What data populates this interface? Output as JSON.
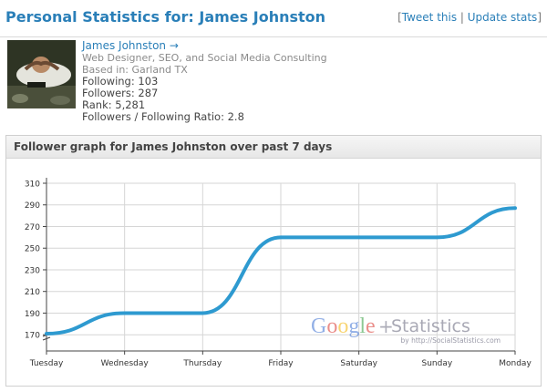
{
  "header": {
    "title": "Personal Statistics for: James Johnston",
    "open_bracket": "[",
    "tweet_link": "Tweet this",
    "separator": " | ",
    "update_link": "Update stats",
    "close_bracket": "]"
  },
  "profile": {
    "name": "James Johnston →",
    "bio": "Web Designer, SEO, and Social Media Consulting",
    "location": "Based in: Garland TX",
    "following": "Following: 103",
    "followers": "Followers: 287",
    "rank": "Rank: 5,281",
    "ratio": "Followers / Following Ratio: 2.8"
  },
  "graph": {
    "title": "Follower graph for James Johnston over past 7 days",
    "watermark": {
      "word": "Google",
      "letter_colors": [
        "#3b6fd1",
        "#d8312a",
        "#f2b200",
        "#3b6fd1",
        "#2f9a3a",
        "#d8312a"
      ],
      "plus": "+",
      "suffix": "Statistics",
      "byline": "by http://SocialStatistics.com"
    }
  },
  "chart_data": {
    "type": "line",
    "categories": [
      "Tuesday",
      "Wednesday",
      "Thursday",
      "Friday",
      "Saturday",
      "Sunday",
      "Monday"
    ],
    "values": [
      171,
      190,
      190,
      260,
      260,
      260,
      287
    ],
    "yticks": [
      170,
      190,
      210,
      230,
      250,
      270,
      290,
      310
    ],
    "ylim": [
      155,
      310
    ],
    "grid": true,
    "line_color": "#2e9ad0"
  }
}
